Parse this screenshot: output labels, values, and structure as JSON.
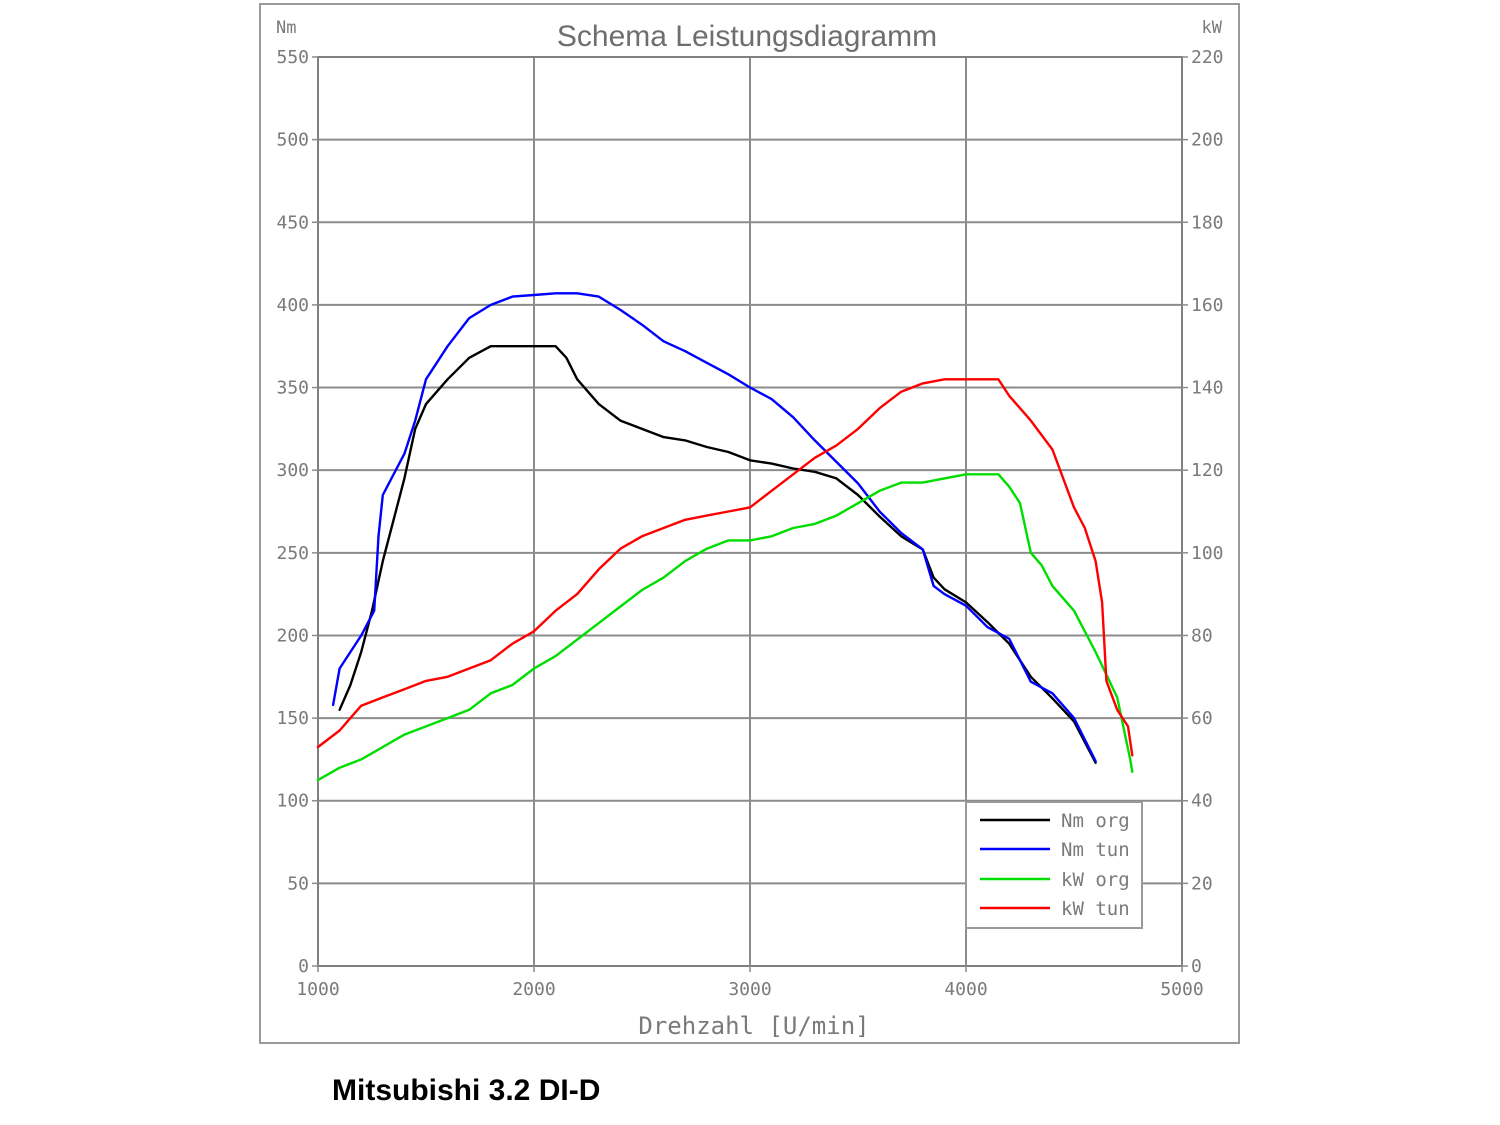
{
  "caption": "Mitsubishi 3.2 DI-D",
  "chart_data": {
    "type": "line",
    "title": "Schema Leistungsdiagramm",
    "xlabel": "Drehzahl [U/min]",
    "ylabel_left": "Nm",
    "ylabel_right": "kW",
    "xlim": [
      1000,
      5000
    ],
    "ylim_left": [
      0,
      550
    ],
    "ylim_right": [
      0,
      220
    ],
    "xticks": [
      "1000",
      "2000",
      "3000",
      "4000",
      "5000"
    ],
    "yticks_left": [
      "0",
      "50",
      "100",
      "150",
      "200",
      "250",
      "300",
      "350",
      "400",
      "450",
      "500",
      "550"
    ],
    "yticks_right": [
      "0",
      "20",
      "40",
      "60",
      "80",
      "100",
      "120",
      "140",
      "160",
      "180",
      "200",
      "220"
    ],
    "grid": true,
    "legend_position": "bottom-right",
    "series": [
      {
        "name": "Nm org",
        "axis": "left",
        "color": "#000000",
        "points": [
          [
            1100,
            155
          ],
          [
            1150,
            170
          ],
          [
            1200,
            190
          ],
          [
            1250,
            215
          ],
          [
            1300,
            245
          ],
          [
            1350,
            270
          ],
          [
            1400,
            295
          ],
          [
            1450,
            325
          ],
          [
            1500,
            340
          ],
          [
            1600,
            355
          ],
          [
            1700,
            368
          ],
          [
            1800,
            375
          ],
          [
            1900,
            375
          ],
          [
            2000,
            375
          ],
          [
            2100,
            375
          ],
          [
            2150,
            368
          ],
          [
            2200,
            355
          ],
          [
            2300,
            340
          ],
          [
            2400,
            330
          ],
          [
            2500,
            325
          ],
          [
            2600,
            320
          ],
          [
            2700,
            318
          ],
          [
            2800,
            314
          ],
          [
            2900,
            311
          ],
          [
            3000,
            306
          ],
          [
            3100,
            304
          ],
          [
            3200,
            301
          ],
          [
            3300,
            299
          ],
          [
            3400,
            295
          ],
          [
            3500,
            285
          ],
          [
            3600,
            272
          ],
          [
            3700,
            260
          ],
          [
            3800,
            252
          ],
          [
            3850,
            235
          ],
          [
            3900,
            228
          ],
          [
            4000,
            220
          ],
          [
            4100,
            208
          ],
          [
            4200,
            195
          ],
          [
            4300,
            175
          ],
          [
            4400,
            162
          ],
          [
            4500,
            148
          ],
          [
            4600,
            123
          ]
        ]
      },
      {
        "name": "Nm tun",
        "axis": "left",
        "color": "#0000ff",
        "points": [
          [
            1070,
            158
          ],
          [
            1100,
            180
          ],
          [
            1200,
            200
          ],
          [
            1260,
            215
          ],
          [
            1280,
            260
          ],
          [
            1300,
            285
          ],
          [
            1400,
            310
          ],
          [
            1450,
            330
          ],
          [
            1500,
            355
          ],
          [
            1600,
            375
          ],
          [
            1700,
            392
          ],
          [
            1800,
            400
          ],
          [
            1900,
            405
          ],
          [
            2000,
            406
          ],
          [
            2100,
            407
          ],
          [
            2200,
            407
          ],
          [
            2300,
            405
          ],
          [
            2400,
            397
          ],
          [
            2500,
            388
          ],
          [
            2600,
            378
          ],
          [
            2700,
            372
          ],
          [
            2800,
            365
          ],
          [
            2900,
            358
          ],
          [
            3000,
            350
          ],
          [
            3100,
            343
          ],
          [
            3200,
            332
          ],
          [
            3300,
            318
          ],
          [
            3400,
            305
          ],
          [
            3500,
            292
          ],
          [
            3600,
            275
          ],
          [
            3700,
            262
          ],
          [
            3800,
            252
          ],
          [
            3850,
            230
          ],
          [
            3900,
            225
          ],
          [
            4000,
            218
          ],
          [
            4100,
            205
          ],
          [
            4200,
            198
          ],
          [
            4300,
            172
          ],
          [
            4400,
            165
          ],
          [
            4500,
            150
          ],
          [
            4600,
            124
          ]
        ]
      },
      {
        "name": "kW org",
        "axis": "right",
        "color": "#00dd00",
        "points": [
          [
            1000,
            45
          ],
          [
            1100,
            48
          ],
          [
            1200,
            50
          ],
          [
            1300,
            53
          ],
          [
            1400,
            56
          ],
          [
            1500,
            58
          ],
          [
            1600,
            60
          ],
          [
            1700,
            62
          ],
          [
            1800,
            66
          ],
          [
            1900,
            68
          ],
          [
            2000,
            72
          ],
          [
            2100,
            75
          ],
          [
            2200,
            79
          ],
          [
            2300,
            83
          ],
          [
            2400,
            87
          ],
          [
            2500,
            91
          ],
          [
            2600,
            94
          ],
          [
            2700,
            98
          ],
          [
            2800,
            101
          ],
          [
            2900,
            103
          ],
          [
            3000,
            103
          ],
          [
            3100,
            104
          ],
          [
            3200,
            106
          ],
          [
            3300,
            107
          ],
          [
            3400,
            109
          ],
          [
            3500,
            112
          ],
          [
            3600,
            115
          ],
          [
            3700,
            117
          ],
          [
            3800,
            117
          ],
          [
            3900,
            118
          ],
          [
            4000,
            119
          ],
          [
            4100,
            119
          ],
          [
            4150,
            119
          ],
          [
            4200,
            116
          ],
          [
            4250,
            112
          ],
          [
            4300,
            100
          ],
          [
            4350,
            97
          ],
          [
            4400,
            92
          ],
          [
            4500,
            86
          ],
          [
            4600,
            76
          ],
          [
            4700,
            65
          ],
          [
            4760,
            50
          ],
          [
            4770,
            47
          ]
        ]
      },
      {
        "name": "kW tun",
        "axis": "right",
        "color": "#ff0000",
        "points": [
          [
            1000,
            53
          ],
          [
            1100,
            57
          ],
          [
            1150,
            60
          ],
          [
            1200,
            63
          ],
          [
            1300,
            65
          ],
          [
            1400,
            67
          ],
          [
            1500,
            69
          ],
          [
            1600,
            70
          ],
          [
            1700,
            72
          ],
          [
            1800,
            74
          ],
          [
            1900,
            78
          ],
          [
            2000,
            81
          ],
          [
            2100,
            86
          ],
          [
            2200,
            90
          ],
          [
            2300,
            96
          ],
          [
            2400,
            101
          ],
          [
            2500,
            104
          ],
          [
            2600,
            106
          ],
          [
            2700,
            108
          ],
          [
            2800,
            109
          ],
          [
            2900,
            110
          ],
          [
            3000,
            111
          ],
          [
            3100,
            115
          ],
          [
            3200,
            119
          ],
          [
            3300,
            123
          ],
          [
            3400,
            126
          ],
          [
            3500,
            130
          ],
          [
            3600,
            135
          ],
          [
            3700,
            139
          ],
          [
            3800,
            141
          ],
          [
            3900,
            142
          ],
          [
            4000,
            142
          ],
          [
            4100,
            142
          ],
          [
            4150,
            142
          ],
          [
            4200,
            138
          ],
          [
            4300,
            132
          ],
          [
            4400,
            125
          ],
          [
            4500,
            111
          ],
          [
            4550,
            106
          ],
          [
            4600,
            98
          ],
          [
            4630,
            88
          ],
          [
            4650,
            69
          ],
          [
            4700,
            62
          ],
          [
            4750,
            58
          ],
          [
            4770,
            51
          ]
        ]
      }
    ]
  }
}
